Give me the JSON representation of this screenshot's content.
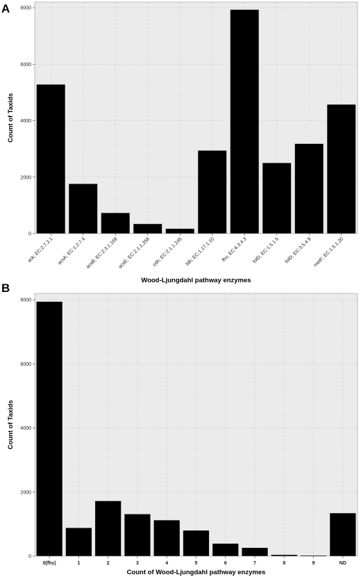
{
  "panels": [
    "A",
    "B"
  ],
  "chart_data": [
    {
      "type": "bar",
      "panel": "A",
      "categories": [
        "ack; EC:2.7.2.1",
        "acsA; EC:1.2.7.4",
        "acsB; EC:2.3.1.169",
        "acsE; EC:2.1.1.258",
        "cdh; EC:2.1.1.245",
        "fdh; EC:1.17.1.10",
        "fhs; EC:6.3.4.3",
        "folD; EC:1.5.1.5",
        "folD; EC:3.5.4.9",
        "metF; EC:1.5.1.20"
      ],
      "values": [
        5280,
        1760,
        730,
        340,
        170,
        2940,
        7930,
        2500,
        3180,
        4570
      ],
      "xlabel": "Wood-Ljungdahl pathway enzymes",
      "ylabel": "Count of Taxids",
      "ylim": [
        0,
        8200
      ],
      "yticks": [
        0,
        2000,
        4000,
        6000,
        8000
      ],
      "ytick_labels": [
        "0",
        "2000",
        "4000",
        "6000",
        "8000"
      ],
      "grid": true,
      "bar_color": "#000000"
    },
    {
      "type": "bar",
      "panel": "B",
      "categories": [
        "0(fhs)",
        "1",
        "2",
        "3",
        "4",
        "5",
        "6",
        "7",
        "8",
        "9",
        "ND"
      ],
      "values": [
        7940,
        880,
        1720,
        1310,
        1120,
        800,
        390,
        260,
        40,
        20,
        1340
      ],
      "xlabel": "Count of Wood-Ljungdahl pathway enzymes",
      "ylabel": "Count of Taxids",
      "ylim": [
        0,
        8200
      ],
      "yticks": [
        0,
        2000,
        4000,
        6000,
        8000
      ],
      "ytick_labels": [
        "0",
        "2000",
        "4000",
        "6000",
        "8000"
      ],
      "grid": true,
      "bar_color": "#000000"
    }
  ]
}
